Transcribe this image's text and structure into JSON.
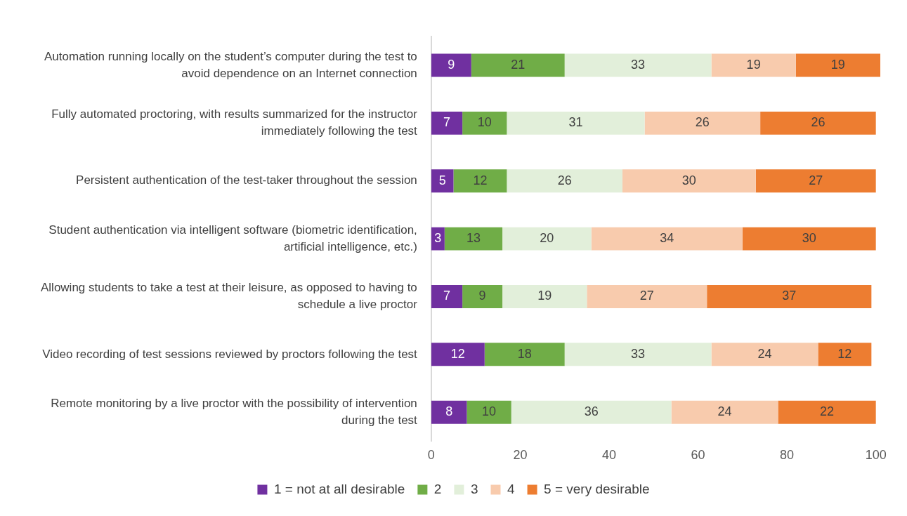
{
  "chart_data": {
    "type": "bar",
    "orientation": "horizontal",
    "stacked": true,
    "categories": [
      "Automation running locally on the student’s computer during the test to avoid dependence on an Internet connection",
      "Fully automated proctoring, with results summarized for the instructor immediately following the test",
      "Persistent authentication of the test-taker throughout the session",
      "Student authentication via intelligent software (biometric identification, artificial intelligence, etc.)",
      "Allowing students to take a test at their leisure, as opposed to having to schedule a live proctor",
      "Video recording of test sessions reviewed by proctors following the test",
      "Remote monitoring by a live proctor with the possibility of intervention during the test"
    ],
    "series": [
      {
        "name": "1 = not at all desirable",
        "color": "#7030a0",
        "values": [
          9,
          7,
          5,
          3,
          7,
          12,
          8
        ]
      },
      {
        "name": "2",
        "color": "#70ad47",
        "values": [
          21,
          10,
          12,
          13,
          9,
          18,
          10
        ]
      },
      {
        "name": "3",
        "color": "#e2efda",
        "values": [
          33,
          31,
          26,
          20,
          19,
          33,
          36
        ]
      },
      {
        "name": "4",
        "color": "#f8cbad",
        "values": [
          19,
          26,
          30,
          34,
          27,
          24,
          24
        ]
      },
      {
        "name": "5 = very desirable",
        "color": "#ed7d31",
        "values": [
          19,
          26,
          27,
          30,
          37,
          12,
          22
        ]
      }
    ],
    "xlim": [
      0,
      101
    ],
    "xticks": [
      0,
      20,
      40,
      60,
      80,
      100
    ],
    "grid": false,
    "legend": "bottom",
    "data_labels": true
  }
}
